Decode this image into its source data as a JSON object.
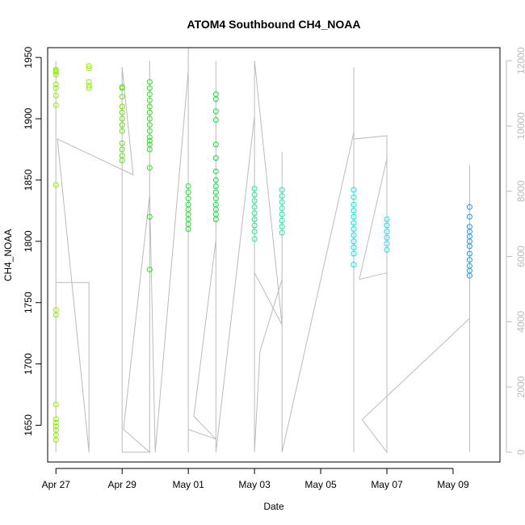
{
  "chart_data": {
    "type": "scatter",
    "title": "ATOM4 Southbound CH4_NOAA",
    "xlabel": "Date",
    "ylabel": "CH4_NOAA",
    "xlim": [
      "2018-04-26T18:00",
      "2018-05-10T10:00"
    ],
    "ylim": [
      1620,
      1958
    ],
    "x_ticks": [
      {
        "date": "2018-04-27",
        "label": "Apr 27"
      },
      {
        "date": "2018-04-29",
        "label": "Apr 29"
      },
      {
        "date": "2018-05-01",
        "label": "May 01"
      },
      {
        "date": "2018-05-03",
        "label": "May 03"
      },
      {
        "date": "2018-05-05",
        "label": "May 05"
      },
      {
        "date": "2018-05-07",
        "label": "May 07"
      },
      {
        "date": "2018-05-09",
        "label": "May 09"
      }
    ],
    "y_ticks": [
      1650,
      1700,
      1750,
      1800,
      1850,
      1900,
      1950
    ],
    "y2_ticks": [
      0,
      2000,
      4000,
      6000,
      8000,
      10000,
      12000
    ],
    "y2lim": [
      -300,
      12400
    ],
    "grid": false,
    "point_color_scale": "time (green to cyan to blue)",
    "series": [
      {
        "flight": 1,
        "color": "#8ef000",
        "points": [
          {
            "x": "2018-04-27T00:00",
            "y": 1940
          },
          {
            "x": "2018-04-27T00:00",
            "y": 1938
          },
          {
            "x": "2018-04-27T00:01",
            "y": 1939
          },
          {
            "x": "2018-04-27T00:01",
            "y": 1936
          },
          {
            "x": "2018-04-27T00:02",
            "y": 1928
          },
          {
            "x": "2018-04-27T00:00",
            "y": 1925
          },
          {
            "x": "2018-04-27T00:01",
            "y": 1919
          },
          {
            "x": "2018-04-27T00:02",
            "y": 1911
          },
          {
            "x": "2018-04-27T00:03",
            "y": 1846
          },
          {
            "x": "2018-04-27T00:04",
            "y": 1744
          },
          {
            "x": "2018-04-27T00:03",
            "y": 1740
          },
          {
            "x": "2018-04-27T00:02",
            "y": 1667
          },
          {
            "x": "2018-04-27T00:04",
            "y": 1655
          },
          {
            "x": "2018-04-27T00:03",
            "y": 1652
          },
          {
            "x": "2018-04-27T00:02",
            "y": 1649
          },
          {
            "x": "2018-04-27T00:04",
            "y": 1646
          },
          {
            "x": "2018-04-27T00:02",
            "y": 1642
          },
          {
            "x": "2018-04-27T00:03",
            "y": 1638
          },
          {
            "x": "2018-04-28T00:00",
            "y": 1943
          },
          {
            "x": "2018-04-28T00:01",
            "y": 1941
          },
          {
            "x": "2018-04-28T00:00",
            "y": 1930
          },
          {
            "x": "2018-04-28T00:01",
            "y": 1927
          },
          {
            "x": "2018-04-28T00:02",
            "y": 1925
          }
        ]
      },
      {
        "flight": 2,
        "color": "#60e010",
        "points": [
          {
            "x": "2018-04-29T00:00",
            "y": 1926
          },
          {
            "x": "2018-04-29T00:00",
            "y": 1925
          },
          {
            "x": "2018-04-29T00:00",
            "y": 1918
          },
          {
            "x": "2018-04-29T00:00",
            "y": 1910
          },
          {
            "x": "2018-04-29T00:00",
            "y": 1905
          },
          {
            "x": "2018-04-29T00:00",
            "y": 1900
          },
          {
            "x": "2018-04-29T00:00",
            "y": 1895
          },
          {
            "x": "2018-04-29T00:00",
            "y": 1890
          },
          {
            "x": "2018-04-29T00:00",
            "y": 1880
          },
          {
            "x": "2018-04-29T00:00",
            "y": 1875
          },
          {
            "x": "2018-04-29T00:00",
            "y": 1870
          },
          {
            "x": "2018-04-29T00:00",
            "y": 1866
          }
        ]
      },
      {
        "flight": 3,
        "color": "#30e020",
        "points": [
          {
            "x": "2018-04-29T20:00",
            "y": 1930
          },
          {
            "x": "2018-04-29T20:00",
            "y": 1925
          },
          {
            "x": "2018-04-29T20:00",
            "y": 1920
          },
          {
            "x": "2018-04-29T20:00",
            "y": 1915
          },
          {
            "x": "2018-04-29T20:00",
            "y": 1910
          },
          {
            "x": "2018-04-29T20:00",
            "y": 1905
          },
          {
            "x": "2018-04-29T20:00",
            "y": 1900
          },
          {
            "x": "2018-04-29T20:00",
            "y": 1895
          },
          {
            "x": "2018-04-29T20:00",
            "y": 1890
          },
          {
            "x": "2018-04-29T20:00",
            "y": 1885
          },
          {
            "x": "2018-04-29T20:00",
            "y": 1882
          },
          {
            "x": "2018-04-29T20:00",
            "y": 1879
          },
          {
            "x": "2018-04-29T20:00",
            "y": 1875
          },
          {
            "x": "2018-04-29T20:00",
            "y": 1860
          },
          {
            "x": "2018-04-29T20:00",
            "y": 1820
          },
          {
            "x": "2018-04-29T20:00",
            "y": 1777
          }
        ]
      },
      {
        "flight": 4,
        "color": "#20e030",
        "points": [
          {
            "x": "2018-05-01T00:00",
            "y": 1845
          },
          {
            "x": "2018-05-01T00:00",
            "y": 1840
          },
          {
            "x": "2018-05-01T00:00",
            "y": 1835
          },
          {
            "x": "2018-05-01T00:00",
            "y": 1830
          },
          {
            "x": "2018-05-01T00:00",
            "y": 1826
          },
          {
            "x": "2018-05-01T00:00",
            "y": 1822
          },
          {
            "x": "2018-05-01T00:00",
            "y": 1818
          },
          {
            "x": "2018-05-01T00:00",
            "y": 1814
          },
          {
            "x": "2018-05-01T00:00",
            "y": 1810
          }
        ]
      },
      {
        "flight": 5,
        "color": "#10e040",
        "points": [
          {
            "x": "2018-05-01T20:00",
            "y": 1920
          },
          {
            "x": "2018-05-01T20:00",
            "y": 1916
          },
          {
            "x": "2018-05-01T20:00",
            "y": 1906
          },
          {
            "x": "2018-05-01T20:00",
            "y": 1899
          },
          {
            "x": "2018-05-01T20:00",
            "y": 1879
          },
          {
            "x": "2018-05-01T20:00",
            "y": 1868
          },
          {
            "x": "2018-05-01T20:00",
            "y": 1857
          },
          {
            "x": "2018-05-01T20:00",
            "y": 1850
          },
          {
            "x": "2018-05-01T20:00",
            "y": 1845
          },
          {
            "x": "2018-05-01T20:00",
            "y": 1840
          },
          {
            "x": "2018-05-01T20:00",
            "y": 1835
          },
          {
            "x": "2018-05-01T20:00",
            "y": 1830
          },
          {
            "x": "2018-05-01T20:00",
            "y": 1826
          },
          {
            "x": "2018-05-01T20:00",
            "y": 1822
          },
          {
            "x": "2018-05-01T20:00",
            "y": 1818
          }
        ]
      },
      {
        "flight": 6,
        "color": "#20e890",
        "points": [
          {
            "x": "2018-05-03T00:00",
            "y": 1843
          },
          {
            "x": "2018-05-03T00:00",
            "y": 1838
          },
          {
            "x": "2018-05-03T00:00",
            "y": 1833
          },
          {
            "x": "2018-05-03T00:00",
            "y": 1828
          },
          {
            "x": "2018-05-03T00:00",
            "y": 1823
          },
          {
            "x": "2018-05-03T00:00",
            "y": 1818
          },
          {
            "x": "2018-05-03T00:00",
            "y": 1813
          },
          {
            "x": "2018-05-03T00:00",
            "y": 1808
          },
          {
            "x": "2018-05-03T00:00",
            "y": 1802
          }
        ]
      },
      {
        "flight": 7,
        "color": "#20e8a8",
        "points": [
          {
            "x": "2018-05-03T20:00",
            "y": 1842
          },
          {
            "x": "2018-05-03T20:00",
            "y": 1837
          },
          {
            "x": "2018-05-03T20:00",
            "y": 1832
          },
          {
            "x": "2018-05-03T20:00",
            "y": 1827
          },
          {
            "x": "2018-05-03T20:00",
            "y": 1822
          },
          {
            "x": "2018-05-03T20:00",
            "y": 1817
          },
          {
            "x": "2018-05-03T20:00",
            "y": 1812
          },
          {
            "x": "2018-05-03T20:00",
            "y": 1807
          }
        ]
      },
      {
        "flight": 8,
        "color": "#00e8e8",
        "points": [
          {
            "x": "2018-05-06T00:00",
            "y": 1842
          },
          {
            "x": "2018-05-06T00:00",
            "y": 1836
          },
          {
            "x": "2018-05-06T00:00",
            "y": 1830
          },
          {
            "x": "2018-05-06T00:00",
            "y": 1825
          },
          {
            "x": "2018-05-06T00:00",
            "y": 1820
          },
          {
            "x": "2018-05-06T00:00",
            "y": 1815
          },
          {
            "x": "2018-05-06T00:00",
            "y": 1810
          },
          {
            "x": "2018-05-06T00:00",
            "y": 1805
          },
          {
            "x": "2018-05-06T00:00",
            "y": 1800
          },
          {
            "x": "2018-05-06T00:00",
            "y": 1795
          },
          {
            "x": "2018-05-06T00:00",
            "y": 1790
          },
          {
            "x": "2018-05-06T00:00",
            "y": 1781
          }
        ]
      },
      {
        "flight": 9,
        "color": "#10e0ec",
        "points": [
          {
            "x": "2018-05-07T00:00",
            "y": 1818
          },
          {
            "x": "2018-05-07T00:00",
            "y": 1813
          },
          {
            "x": "2018-05-07T00:00",
            "y": 1808
          },
          {
            "x": "2018-05-07T00:00",
            "y": 1803
          },
          {
            "x": "2018-05-07T00:00",
            "y": 1798
          },
          {
            "x": "2018-05-07T00:00",
            "y": 1793
          }
        ]
      },
      {
        "flight": 10,
        "color": "#1898f0",
        "points": [
          {
            "x": "2018-05-09T12:00",
            "y": 1828
          },
          {
            "x": "2018-05-09T12:00",
            "y": 1820
          },
          {
            "x": "2018-05-09T12:00",
            "y": 1812
          },
          {
            "x": "2018-05-09T12:00",
            "y": 1808
          },
          {
            "x": "2018-05-09T12:00",
            "y": 1804
          },
          {
            "x": "2018-05-09T12:00",
            "y": 1800
          },
          {
            "x": "2018-05-09T12:00",
            "y": 1796
          },
          {
            "x": "2018-05-09T12:00",
            "y": 1790
          },
          {
            "x": "2018-05-09T12:00",
            "y": 1785
          },
          {
            "x": "2018-05-09T12:00",
            "y": 1780
          },
          {
            "x": "2018-05-09T12:00",
            "y": 1776
          },
          {
            "x": "2018-05-09T12:00",
            "y": 1772
          }
        ]
      }
    ],
    "altitude_trace": {
      "y_axis": "y2",
      "color": "#bbbbbb",
      "points": [
        {
          "x": "2018-04-27T00:00",
          "y": 12000
        },
        {
          "x": "2018-04-27T00:00",
          "y": 0
        },
        {
          "x": "2018-04-27T00:00",
          "y": 5200
        },
        {
          "x": "2018-04-28T00:00",
          "y": 5200
        },
        {
          "x": "2018-04-28T00:00",
          "y": 0
        },
        {
          "x": "2018-04-27T01:00",
          "y": 9600
        },
        {
          "x": "2018-04-29T08:00",
          "y": 8500
        },
        {
          "x": "2018-04-29T00:00",
          "y": 11800
        },
        {
          "x": "2018-04-29T00:00",
          "y": 0
        },
        {
          "x": "2018-04-29T20:00",
          "y": 0
        },
        {
          "x": "2018-04-29T20:00",
          "y": 12000
        },
        {
          "x": "2018-04-29T20:00",
          "y": 0
        },
        {
          "x": "2018-04-29T01:00",
          "y": 700
        },
        {
          "x": "2018-04-29T20:00",
          "y": 7900
        },
        {
          "x": "2018-04-30T00:00",
          "y": 0
        },
        {
          "x": "2018-05-01T00:00",
          "y": 11700
        },
        {
          "x": "2018-05-01T00:00",
          "y": 0
        },
        {
          "x": "2018-05-01T00:00",
          "y": 12400
        },
        {
          "x": "2018-05-01T00:00",
          "y": 700
        },
        {
          "x": "2018-05-01T20:00",
          "y": 400
        },
        {
          "x": "2018-05-01T04:00",
          "y": 1100
        },
        {
          "x": "2018-05-01T20:00",
          "y": 6500
        },
        {
          "x": "2018-05-01T20:00",
          "y": 12000
        },
        {
          "x": "2018-05-01T20:00",
          "y": 0
        },
        {
          "x": "2018-05-03T00:00",
          "y": 10300
        },
        {
          "x": "2018-05-03T00:00",
          "y": 0
        },
        {
          "x": "2018-05-03T00:00",
          "y": 5500
        },
        {
          "x": "2018-05-03T20:00",
          "y": 3900
        },
        {
          "x": "2018-05-03T00:00",
          "y": 12000
        },
        {
          "x": "2018-05-03T00:00",
          "y": 0
        },
        {
          "x": "2018-05-03T04:00",
          "y": 3100
        },
        {
          "x": "2018-05-03T20:00",
          "y": 5300
        },
        {
          "x": "2018-05-03T20:00",
          "y": 9200
        },
        {
          "x": "2018-05-03T20:00",
          "y": 0
        },
        {
          "x": "2018-05-06T00:00",
          "y": 9800
        },
        {
          "x": "2018-05-06T00:00",
          "y": 0
        },
        {
          "x": "2018-05-06T00:00",
          "y": 11800
        },
        {
          "x": "2018-05-06T00:00",
          "y": 0
        },
        {
          "x": "2018-05-06T00:00",
          "y": 9600
        },
        {
          "x": "2018-05-07T00:00",
          "y": 9700
        },
        {
          "x": "2018-05-07T00:00",
          "y": 0
        },
        {
          "x": "2018-05-07T00:00",
          "y": 5500
        },
        {
          "x": "2018-05-06T04:00",
          "y": 5300
        },
        {
          "x": "2018-05-07T00:00",
          "y": 9000
        },
        {
          "x": "2018-05-07T00:00",
          "y": 0
        },
        {
          "x": "2018-05-06T06:00",
          "y": 1000
        },
        {
          "x": "2018-05-09T12:00",
          "y": 4100
        },
        {
          "x": "2018-05-09T12:00",
          "y": 0
        },
        {
          "x": "2018-05-09T12:00",
          "y": 8800
        },
        {
          "x": "2018-05-09T12:00",
          "y": 4300
        }
      ]
    }
  }
}
